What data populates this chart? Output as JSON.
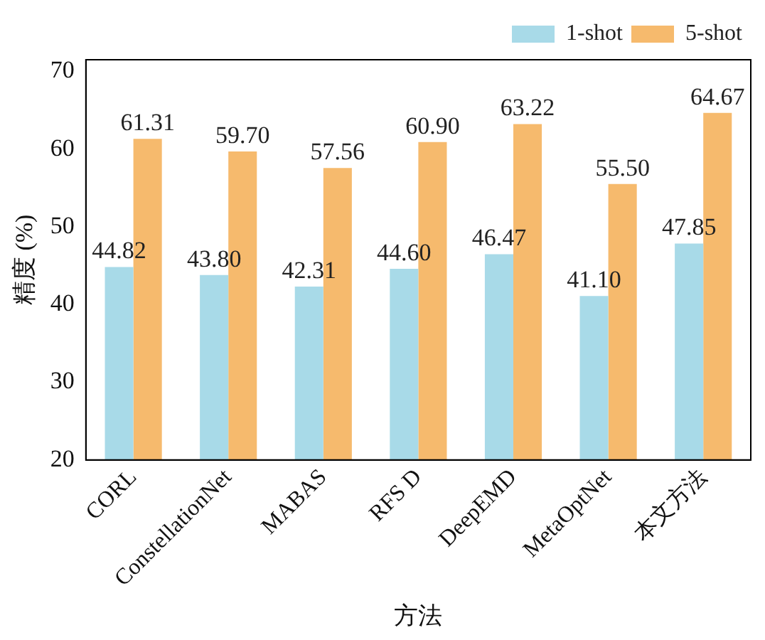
{
  "chart_data": {
    "type": "bar",
    "xlabel": "方法",
    "ylabel": "精度 (%)",
    "categories": [
      "CORL",
      "ConstellationNet",
      "MABAS",
      "RFS D",
      "DeepEMD",
      "MetaOptNet",
      "本文方法"
    ],
    "series": [
      {
        "name": "1-shot",
        "color": "#a8dae8",
        "values": [
          44.82,
          43.8,
          42.31,
          44.6,
          46.47,
          41.1,
          47.85
        ],
        "value_labels": [
          "44.82",
          "43.80",
          "42.31",
          "44.60",
          "46.47",
          "41.10",
          "47.85"
        ]
      },
      {
        "name": "5-shot",
        "color": "#f6ba6d",
        "values": [
          61.31,
          59.7,
          57.56,
          60.9,
          63.22,
          55.5,
          64.67
        ],
        "value_labels": [
          "61.31",
          "59.70",
          "57.56",
          "60.90",
          "63.22",
          "55.50",
          "64.67"
        ]
      }
    ],
    "ylim": [
      20,
      71.5
    ],
    "yticks": [
      20,
      30,
      40,
      50,
      60,
      70
    ],
    "grid": false,
    "legend": "top right"
  }
}
